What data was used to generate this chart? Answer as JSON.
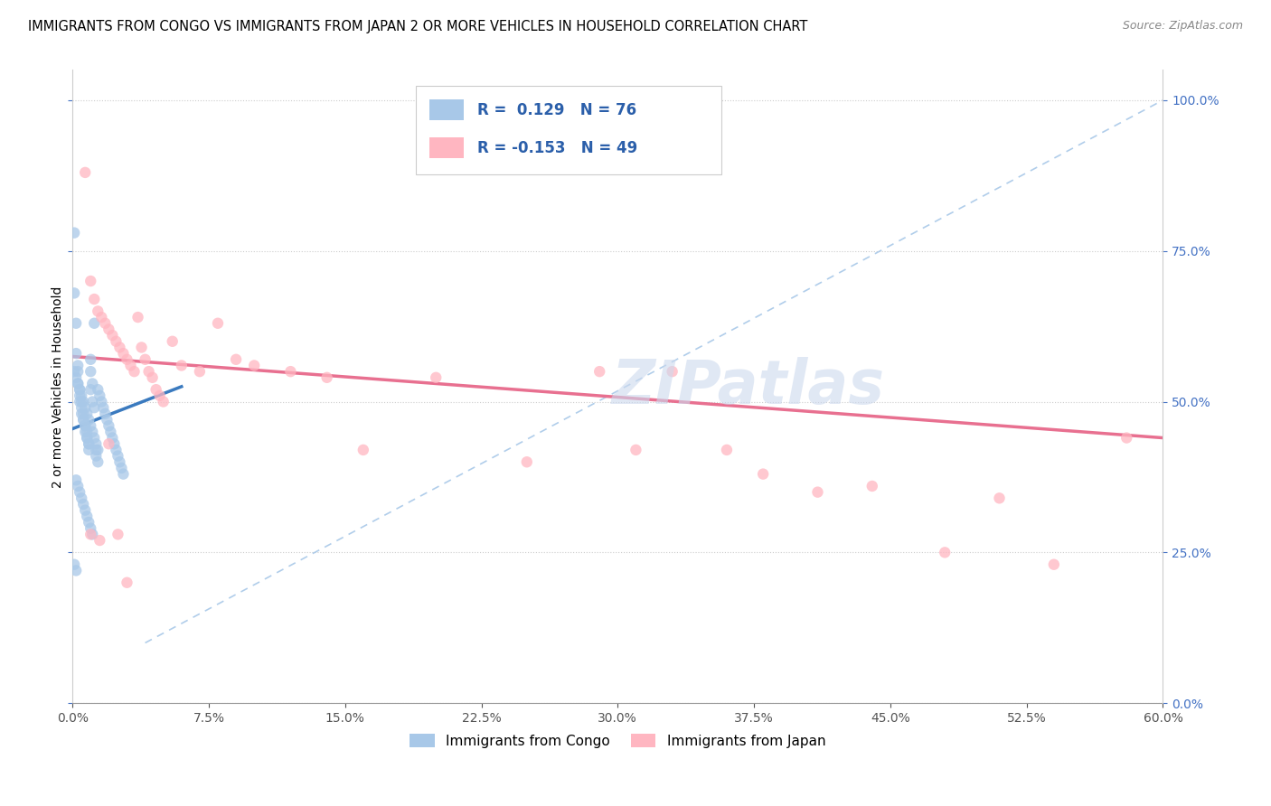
{
  "title": "IMMIGRANTS FROM CONGO VS IMMIGRANTS FROM JAPAN 2 OR MORE VEHICLES IN HOUSEHOLD CORRELATION CHART",
  "source": "Source: ZipAtlas.com",
  "ylabel": "2 or more Vehicles in Household",
  "ytick_vals": [
    0.0,
    0.25,
    0.5,
    0.75,
    1.0
  ],
  "ytick_labels": [
    "0.0%",
    "25.0%",
    "50.0%",
    "75.0%",
    "100.0%"
  ],
  "xtick_vals": [
    0.0,
    0.075,
    0.15,
    0.225,
    0.3,
    0.375,
    0.45,
    0.525,
    0.6
  ],
  "xtick_labels": [
    "0.0%",
    "7.5%",
    "15.0%",
    "22.5%",
    "30.0%",
    "37.5%",
    "45.0%",
    "52.5%",
    "60.0%"
  ],
  "legend_r_congo": "R =  0.129",
  "legend_n_congo": "N = 76",
  "legend_r_japan": "R = -0.153",
  "legend_n_japan": "N = 49",
  "congo_color": "#a8c8e8",
  "japan_color": "#ffb6c1",
  "congo_line_color": "#3a7abf",
  "japan_line_color": "#e87090",
  "dashed_line_color": "#a8c8e8",
  "watermark": "ZIPatlas",
  "xmin": 0.0,
  "xmax": 0.6,
  "ymin": 0.0,
  "ymax": 1.05,
  "congo_scatter_x": [
    0.001,
    0.001,
    0.002,
    0.002,
    0.003,
    0.003,
    0.003,
    0.004,
    0.004,
    0.004,
    0.005,
    0.005,
    0.005,
    0.006,
    0.006,
    0.006,
    0.007,
    0.007,
    0.007,
    0.008,
    0.008,
    0.008,
    0.009,
    0.009,
    0.009,
    0.01,
    0.01,
    0.01,
    0.011,
    0.011,
    0.012,
    0.012,
    0.013,
    0.013,
    0.014,
    0.014,
    0.015,
    0.016,
    0.017,
    0.018,
    0.019,
    0.02,
    0.021,
    0.022,
    0.023,
    0.024,
    0.025,
    0.026,
    0.027,
    0.028,
    0.001,
    0.002,
    0.003,
    0.004,
    0.005,
    0.006,
    0.007,
    0.008,
    0.009,
    0.01,
    0.011,
    0.012,
    0.013,
    0.014,
    0.002,
    0.003,
    0.004,
    0.005,
    0.006,
    0.007,
    0.008,
    0.009,
    0.01,
    0.011,
    0.001,
    0.002
  ],
  "congo_scatter_y": [
    0.78,
    0.68,
    0.63,
    0.58,
    0.56,
    0.55,
    0.53,
    0.52,
    0.51,
    0.5,
    0.5,
    0.49,
    0.48,
    0.48,
    0.47,
    0.47,
    0.46,
    0.46,
    0.45,
    0.45,
    0.44,
    0.44,
    0.43,
    0.43,
    0.42,
    0.52,
    0.57,
    0.55,
    0.53,
    0.5,
    0.49,
    0.63,
    0.42,
    0.41,
    0.4,
    0.52,
    0.51,
    0.5,
    0.49,
    0.48,
    0.47,
    0.46,
    0.45,
    0.44,
    0.43,
    0.42,
    0.41,
    0.4,
    0.39,
    0.38,
    0.55,
    0.54,
    0.53,
    0.52,
    0.51,
    0.5,
    0.49,
    0.48,
    0.47,
    0.46,
    0.45,
    0.44,
    0.43,
    0.42,
    0.37,
    0.36,
    0.35,
    0.34,
    0.33,
    0.32,
    0.31,
    0.3,
    0.29,
    0.28,
    0.23,
    0.22
  ],
  "japan_scatter_x": [
    0.007,
    0.01,
    0.012,
    0.014,
    0.016,
    0.018,
    0.02,
    0.022,
    0.024,
    0.026,
    0.028,
    0.03,
    0.032,
    0.034,
    0.036,
    0.038,
    0.04,
    0.042,
    0.044,
    0.046,
    0.048,
    0.05,
    0.055,
    0.06,
    0.07,
    0.08,
    0.09,
    0.1,
    0.12,
    0.14,
    0.16,
    0.2,
    0.25,
    0.29,
    0.31,
    0.33,
    0.36,
    0.38,
    0.41,
    0.44,
    0.48,
    0.51,
    0.54,
    0.58,
    0.01,
    0.015,
    0.02,
    0.025,
    0.03
  ],
  "japan_scatter_y": [
    0.88,
    0.7,
    0.67,
    0.65,
    0.64,
    0.63,
    0.62,
    0.61,
    0.6,
    0.59,
    0.58,
    0.57,
    0.56,
    0.55,
    0.64,
    0.59,
    0.57,
    0.55,
    0.54,
    0.52,
    0.51,
    0.5,
    0.6,
    0.56,
    0.55,
    0.63,
    0.57,
    0.56,
    0.55,
    0.54,
    0.42,
    0.54,
    0.4,
    0.55,
    0.42,
    0.55,
    0.42,
    0.38,
    0.35,
    0.36,
    0.25,
    0.34,
    0.23,
    0.44,
    0.28,
    0.27,
    0.43,
    0.28,
    0.2
  ],
  "congo_trend_x": [
    0.0,
    0.06
  ],
  "congo_trend_y": [
    0.455,
    0.525
  ],
  "japan_trend_x": [
    0.0,
    0.6
  ],
  "japan_trend_y": [
    0.575,
    0.44
  ],
  "dashed_trend_x": [
    0.04,
    0.6
  ],
  "dashed_trend_y": [
    0.1,
    1.0
  ]
}
